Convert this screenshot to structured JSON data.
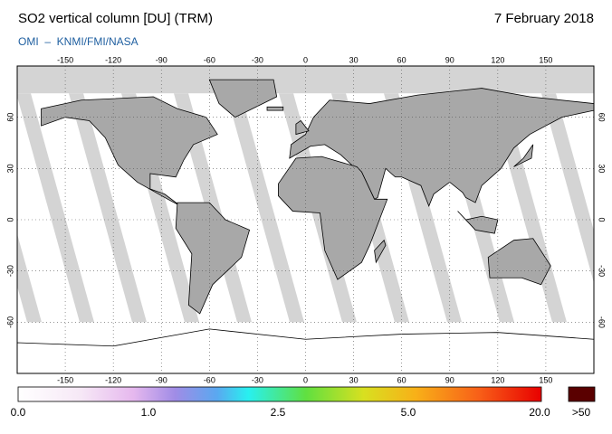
{
  "header": {
    "title": "SO2 vertical column [DU] (TRM)",
    "date": "7 February 2018",
    "source": "OMI  –  KNMI/FMI/NASA"
  },
  "map": {
    "lon_ticks": [
      -150,
      -120,
      -90,
      -60,
      -30,
      0,
      30,
      60,
      90,
      120,
      150
    ],
    "lat_ticks": [
      60,
      30,
      0,
      -30,
      -60
    ]
  },
  "colorbar": {
    "labels": [
      "0.0",
      "1.0",
      "2.5",
      "5.0",
      "20.0",
      ">50"
    ]
  }
}
